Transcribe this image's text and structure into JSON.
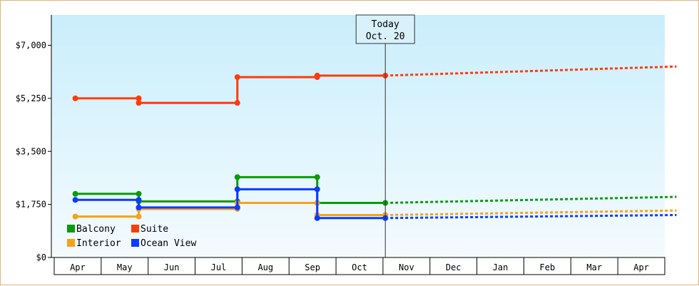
{
  "chart_data": {
    "type": "line",
    "title": "",
    "xlabel": "",
    "ylabel": "",
    "ylim": [
      0,
      8000
    ],
    "yticks": [
      {
        "value": 0,
        "label": "$0"
      },
      {
        "value": 1750,
        "label": "$1,750"
      },
      {
        "value": 3500,
        "label": "$3,500"
      },
      {
        "value": 5250,
        "label": "$5,250"
      },
      {
        "value": 7000,
        "label": "$7,000"
      }
    ],
    "months": [
      "Apr",
      "May",
      "Jun",
      "Jul",
      "Aug",
      "Sep",
      "Oct",
      "Nov",
      "Dec",
      "Jan",
      "Feb",
      "Mar",
      "Apr"
    ],
    "today": {
      "line1": "Today",
      "line2": "Oct. 20",
      "x": 6.55
    },
    "legend": {
      "placement": "bottom-left"
    },
    "series": [
      {
        "name": "Balcony",
        "color": "#0b9a0b",
        "history": [
          [
            -0.05,
            2100
          ],
          [
            1.3,
            2100
          ],
          [
            1.3,
            1850
          ],
          [
            3.4,
            1850
          ],
          [
            3.4,
            2650
          ],
          [
            5.1,
            2650
          ],
          [
            5.1,
            1800
          ],
          [
            6.55,
            1800
          ]
        ],
        "forecast": [
          [
            6.55,
            1800
          ],
          [
            12.75,
            2000
          ]
        ]
      },
      {
        "name": "Suite",
        "color": "#ff3b0a",
        "history": [
          [
            -0.05,
            5250
          ],
          [
            1.3,
            5250
          ],
          [
            1.3,
            5100
          ],
          [
            3.4,
            5100
          ],
          [
            3.4,
            5950
          ],
          [
            5.1,
            5950
          ],
          [
            5.1,
            6000
          ],
          [
            6.55,
            6000
          ]
        ],
        "forecast": [
          [
            6.55,
            6000
          ],
          [
            12.75,
            6300
          ]
        ]
      },
      {
        "name": "Interior",
        "color": "#f6a21a",
        "history": [
          [
            -0.05,
            1350
          ],
          [
            1.3,
            1350
          ],
          [
            1.3,
            1600
          ],
          [
            3.4,
            1600
          ],
          [
            3.4,
            1800
          ],
          [
            5.1,
            1800
          ],
          [
            5.1,
            1400
          ],
          [
            6.55,
            1400
          ]
        ],
        "forecast": [
          [
            6.55,
            1400
          ],
          [
            12.75,
            1550
          ]
        ]
      },
      {
        "name": "Ocean View",
        "color": "#0a3bff",
        "history": [
          [
            -0.05,
            1900
          ],
          [
            1.3,
            1900
          ],
          [
            1.3,
            1650
          ],
          [
            3.4,
            1650
          ],
          [
            3.4,
            2250
          ],
          [
            5.1,
            2250
          ],
          [
            5.1,
            1300
          ],
          [
            6.55,
            1300
          ]
        ],
        "forecast": [
          [
            6.55,
            1300
          ],
          [
            12.75,
            1400
          ]
        ]
      }
    ]
  }
}
